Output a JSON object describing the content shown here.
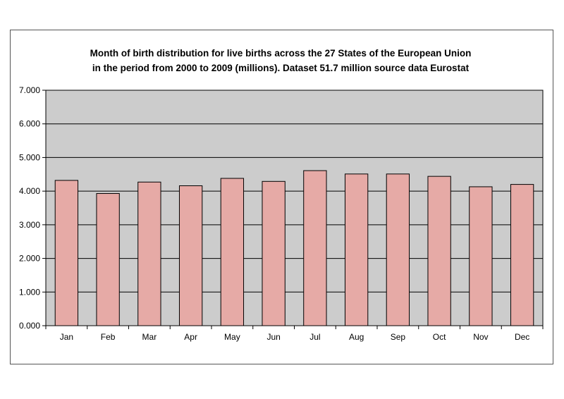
{
  "chart_data": {
    "type": "bar",
    "title": "Month of birth distribution for live births across the 27 States of the European Union in the period from 2000 to 2009 (millions). Dataset 51.7 million source data Eurostat",
    "title_lines": [
      "Month of birth distribution for live births across the 27 States of the European Union",
      "in the period from 2000 to 2009 (millions). Dataset 51.7 million source data Eurostat"
    ],
    "xlabel": "",
    "ylabel": "",
    "categories": [
      "Jan",
      "Feb",
      "Mar",
      "Apr",
      "May",
      "Jun",
      "Jul",
      "Aug",
      "Sep",
      "Oct",
      "Nov",
      "Dec"
    ],
    "values": [
      4.32,
      3.93,
      4.27,
      4.16,
      4.38,
      4.29,
      4.61,
      4.51,
      4.51,
      4.44,
      4.13,
      4.2
    ],
    "ylim": [
      0,
      7
    ],
    "yticks": [
      0,
      1,
      2,
      3,
      4,
      5,
      6,
      7
    ],
    "ytick_labels": [
      "0.000",
      "1.000",
      "2.000",
      "3.000",
      "4.000",
      "5.000",
      "6.000",
      "7.000"
    ],
    "grid": true,
    "legend": "none",
    "colors": {
      "bar_fill": "#e6aaa6",
      "bar_stroke": "#000000",
      "plot_background": "#cccccc",
      "gridline": "#000000"
    }
  }
}
